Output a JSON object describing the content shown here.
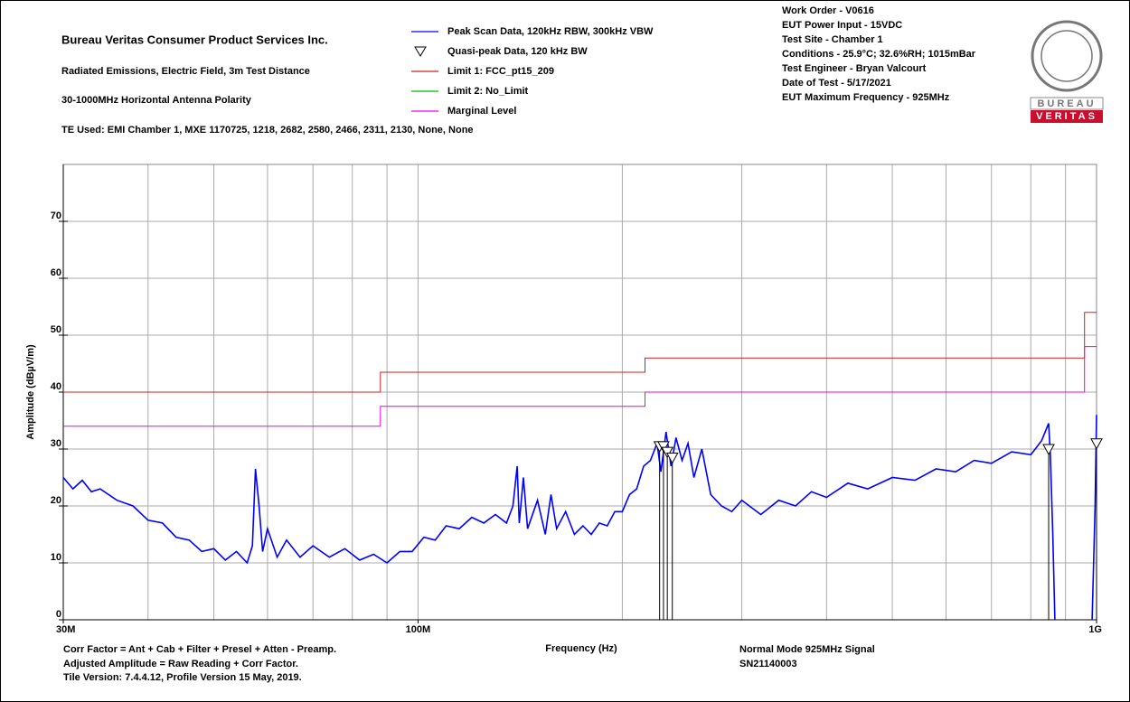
{
  "header": {
    "title": "Bureau Veritas Consumer Product Services Inc.",
    "lines": [
      "Radiated Emissions, Electric Field, 3m Test Distance",
      "30-1000MHz Horizontal Antenna Polarity",
      "TE Used: EMI Chamber 1, MXE 1170725, 1218, 2682, 2580, 2466, 2311, 2130, None, None"
    ],
    "info": [
      "Work Order - V0616",
      "EUT Power Input - 15VDC",
      "Test Site - Chamber 1",
      "Conditions - 25.9°C; 32.6%RH; 1015mBar",
      "Test Engineer - Bryan Valcourt",
      "Date of Test - 5/17/2021",
      "EUT Maximum Frequency - 925MHz"
    ],
    "logo": {
      "top": "BUREAU",
      "bottom": "VERITAS"
    }
  },
  "footer": {
    "left": [
      "Corr Factor = Ant + Cab + Filter + Presel + Atten - Preamp.",
      "Adjusted Amplitude = Raw Reading + Corr Factor.",
      "Tile Version: 7.4.4.12, Profile Version 15 May, 2019."
    ],
    "right": [
      "Normal Mode 925MHz Signal",
      "SN21140003"
    ]
  },
  "chart_data": {
    "type": "line",
    "xlabel": "Frequency (Hz)",
    "ylabel": "Amplitude (dBµV/m)",
    "log_x": true,
    "grid": true,
    "xlim": [
      30000000.0,
      1000000000.0
    ],
    "ylim": [
      0,
      80
    ],
    "xticks": [
      {
        "value": 30000000.0,
        "label": "30M"
      },
      {
        "value": 100000000.0,
        "label": "100M"
      },
      {
        "value": 1000000000.0,
        "label": "1G"
      }
    ],
    "xgrid": [
      40000000.0,
      50000000.0,
      60000000.0,
      70000000.0,
      80000000.0,
      90000000.0,
      100000000.0,
      200000000.0,
      300000000.0,
      400000000.0,
      500000000.0,
      600000000.0,
      700000000.0,
      800000000.0,
      900000000.0
    ],
    "yticks": [
      0,
      10,
      20,
      30,
      40,
      50,
      60,
      70
    ],
    "series": [
      {
        "name": "Peak Scan Data, 120kHz RBW, 300kHz VBW",
        "color": "#0000ff",
        "x": [
          30000000.0,
          31000000.0,
          32000000.0,
          33000000.0,
          34000000.0,
          36000000.0,
          38000000.0,
          40000000.0,
          42000000.0,
          44000000.0,
          46000000.0,
          48000000.0,
          50000000.0,
          52000000.0,
          54000000.0,
          56000000.0,
          57000000.0,
          57600000.0,
          58300000.0,
          59000000.0,
          60000000.0,
          62000000.0,
          64000000.0,
          67000000.0,
          70000000.0,
          74000000.0,
          78000000.0,
          82000000.0,
          86000000.0,
          90000000.0,
          94000000.0,
          98000000.0,
          102000000.0,
          106000000.0,
          110000000.0,
          115000000.0,
          120000000.0,
          125000000.0,
          130000000.0,
          135000000.0,
          138000000.0,
          140000000.0,
          141000000.0,
          143000000.0,
          145000000.0,
          150000000.0,
          154000000.0,
          157000000.0,
          160000000.0,
          165000000.0,
          170000000.0,
          175000000.0,
          180000000.0,
          185000000.0,
          190000000.0,
          195000000.0,
          200000000.0,
          205000000.0,
          210000000.0,
          215000000.0,
          220000000.0,
          225000000.0,
          228000000.0,
          232000000.0,
          236000000.0,
          240000000.0,
          245000000.0,
          250000000.0,
          255000000.0,
          262000000.0,
          270000000.0,
          280000000.0,
          290000000.0,
          300000000.0,
          320000000.0,
          340000000.0,
          360000000.0,
          380000000.0,
          400000000.0,
          430000000.0,
          460000000.0,
          500000000.0,
          540000000.0,
          580000000.0,
          620000000.0,
          660000000.0,
          700000000.0,
          750000000.0,
          800000000.0,
          830000000.0,
          850000000.0,
          855000000.0,
          862000000.0,
          868000000.0,
          920000000.0,
          985000000.0,
          995000000.0,
          1000000000.0
        ],
        "values": [
          25,
          23,
          24.5,
          22.5,
          23,
          21,
          20,
          17.5,
          17,
          14.5,
          14,
          12,
          12.5,
          10.5,
          12,
          10,
          13,
          26.5,
          20,
          12,
          16,
          11,
          14,
          11,
          13,
          11,
          12.5,
          10.5,
          11.5,
          10,
          12,
          12,
          14.5,
          14,
          16.5,
          16,
          18,
          17,
          18.5,
          17,
          20,
          27,
          17,
          25,
          16,
          21,
          15,
          22,
          16,
          19,
          15,
          16.5,
          15,
          17,
          16.5,
          19,
          19,
          22,
          23,
          27,
          28,
          31,
          26,
          33,
          27,
          32,
          28,
          31,
          25,
          30,
          22,
          20,
          19,
          21,
          18.5,
          21,
          20,
          22.5,
          21.5,
          24,
          23,
          25,
          24.5,
          26.5,
          26,
          28,
          27.5,
          29.5,
          29,
          31.5,
          34.5,
          29,
          15,
          0,
          null,
          0,
          20,
          36
        ]
      },
      {
        "name": "Limit 1: FCC_pt15_209",
        "color": "#cc2222",
        "x": [
          30000000.0,
          88000000.0,
          88000000.0,
          216000000.0,
          216000000.0,
          960000000.0,
          960000000.0,
          1000000000.0
        ],
        "values": [
          40,
          40,
          43.5,
          43.5,
          46,
          46,
          54,
          54
        ]
      },
      {
        "name": "Limit 2: No_Limit",
        "color": "#00bb00",
        "x": [],
        "values": []
      },
      {
        "name": "Marginal Level",
        "color": "#ee00ee",
        "x": [
          30000000.0,
          88000000.0,
          88000000.0,
          216000000.0,
          216000000.0,
          960000000.0,
          960000000.0,
          1000000000.0
        ],
        "values": [
          34,
          34,
          37.5,
          37.5,
          40,
          40,
          48,
          48
        ]
      }
    ],
    "markers": {
      "name": "Quasi-peak Data, 120 kHz BW",
      "x": [
        227000000.0,
        230000000.0,
        233000000.0,
        237000000.0,
        850000000.0,
        1000000000.0
      ],
      "values": [
        30.5,
        30.5,
        29.5,
        28.5,
        30,
        31
      ]
    }
  }
}
